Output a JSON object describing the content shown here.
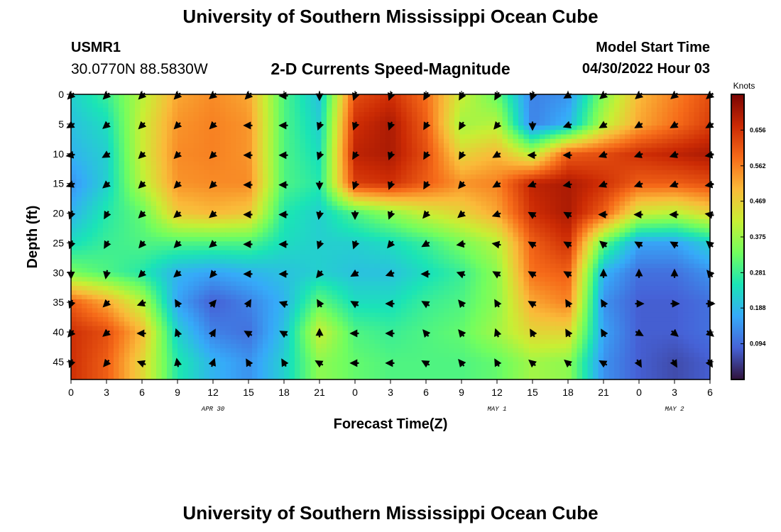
{
  "header": {
    "title": "University of Southern Mississippi Ocean Cube",
    "station": "USMR1",
    "coords": "30.0770N  88.5830W",
    "subtitle": "2-D Currents Speed-Magnitude",
    "model_label": "Model Start Time",
    "model_time": "04/30/2022 Hour 03"
  },
  "footer": {
    "title": "University of Southern Mississippi Ocean Cube"
  },
  "chart_data": {
    "type": "heatmap",
    "title": "2-D Currents Speed-Magnitude",
    "xlabel": "Forecast Time(Z)",
    "ylabel": "Depth (ft)",
    "x_ticks": [
      "0",
      "3",
      "6",
      "9",
      "12",
      "15",
      "18",
      "21",
      "0",
      "3",
      "6",
      "9",
      "12",
      "15",
      "18",
      "21",
      "0",
      "3",
      "6"
    ],
    "date_labels": [
      {
        "label": "APR 30",
        "at_tick": 4
      },
      {
        "label": "MAY 1",
        "at_tick": 12
      },
      {
        "label": "MAY 2",
        "at_tick": 17
      }
    ],
    "y_ticks": [
      0,
      5,
      10,
      15,
      20,
      25,
      30,
      35,
      40,
      45
    ],
    "ylim": [
      0,
      48
    ],
    "y_inverted": true,
    "colorbar": {
      "unit": "Knots",
      "ticks": [
        0.094,
        0.188,
        0.281,
        0.375,
        0.469,
        0.562,
        0.656
      ],
      "range": [
        0.0,
        0.75
      ],
      "colors": [
        "#30123b",
        "#4662d7",
        "#36aaf9",
        "#1ae4b6",
        "#72fe5e",
        "#c8ef34",
        "#faba39",
        "#f66b19",
        "#cb2a04",
        "#7a0403"
      ]
    },
    "grid_x_hours": [
      0,
      3,
      6,
      9,
      12,
      15,
      18,
      21,
      24,
      27,
      30,
      33,
      36,
      39,
      42,
      45,
      48,
      51,
      54
    ],
    "grid_depths": [
      0,
      5,
      10,
      15,
      20,
      25,
      30,
      35,
      40,
      45
    ],
    "speed": [
      [
        0.22,
        0.28,
        0.4,
        0.52,
        0.55,
        0.52,
        0.3,
        0.2,
        0.62,
        0.66,
        0.58,
        0.42,
        0.32,
        0.12,
        0.14,
        0.35,
        0.5,
        0.56,
        0.62
      ],
      [
        0.2,
        0.24,
        0.42,
        0.54,
        0.56,
        0.54,
        0.3,
        0.22,
        0.66,
        0.7,
        0.6,
        0.38,
        0.4,
        0.12,
        0.18,
        0.4,
        0.52,
        0.58,
        0.64
      ],
      [
        0.18,
        0.22,
        0.42,
        0.55,
        0.56,
        0.54,
        0.3,
        0.24,
        0.68,
        0.7,
        0.62,
        0.46,
        0.5,
        0.4,
        0.6,
        0.62,
        0.66,
        0.68,
        0.7
      ],
      [
        0.14,
        0.22,
        0.4,
        0.54,
        0.55,
        0.55,
        0.3,
        0.26,
        0.64,
        0.66,
        0.6,
        0.54,
        0.56,
        0.68,
        0.7,
        0.66,
        0.6,
        0.6,
        0.62
      ],
      [
        0.18,
        0.26,
        0.32,
        0.48,
        0.5,
        0.48,
        0.26,
        0.22,
        0.3,
        0.36,
        0.42,
        0.46,
        0.52,
        0.66,
        0.7,
        0.6,
        0.42,
        0.4,
        0.46
      ],
      [
        0.24,
        0.28,
        0.3,
        0.3,
        0.3,
        0.3,
        0.24,
        0.22,
        0.22,
        0.24,
        0.28,
        0.34,
        0.4,
        0.6,
        0.66,
        0.32,
        0.16,
        0.16,
        0.22
      ],
      [
        0.34,
        0.3,
        0.26,
        0.18,
        0.16,
        0.18,
        0.2,
        0.22,
        0.2,
        0.2,
        0.24,
        0.28,
        0.36,
        0.58,
        0.6,
        0.18,
        0.1,
        0.1,
        0.14
      ],
      [
        0.6,
        0.52,
        0.4,
        0.16,
        0.08,
        0.12,
        0.18,
        0.32,
        0.24,
        0.24,
        0.28,
        0.3,
        0.36,
        0.52,
        0.56,
        0.14,
        0.08,
        0.08,
        0.1
      ],
      [
        0.66,
        0.62,
        0.5,
        0.22,
        0.12,
        0.1,
        0.2,
        0.42,
        0.3,
        0.28,
        0.3,
        0.32,
        0.38,
        0.46,
        0.46,
        0.16,
        0.08,
        0.08,
        0.1
      ],
      [
        0.66,
        0.6,
        0.46,
        0.26,
        0.18,
        0.14,
        0.22,
        0.36,
        0.32,
        0.3,
        0.3,
        0.3,
        0.32,
        0.38,
        0.36,
        0.14,
        0.08,
        0.06,
        0.08
      ]
    ],
    "direction_deg": [
      [
        225,
        225,
        225,
        225,
        230,
        225,
        270,
        180,
        200,
        200,
        210,
        210,
        210,
        200,
        240,
        230,
        230,
        230,
        230
      ],
      [
        240,
        230,
        225,
        225,
        225,
        270,
        270,
        200,
        200,
        200,
        210,
        210,
        220,
        180,
        250,
        240,
        240,
        240,
        240
      ],
      [
        260,
        240,
        225,
        225,
        225,
        270,
        270,
        200,
        210,
        200,
        210,
        210,
        240,
        270,
        270,
        250,
        250,
        250,
        260
      ],
      [
        250,
        230,
        225,
        225,
        225,
        270,
        270,
        180,
        200,
        200,
        210,
        220,
        240,
        250,
        260,
        250,
        250,
        250,
        260
      ],
      [
        200,
        210,
        225,
        230,
        230,
        270,
        270,
        190,
        180,
        200,
        220,
        230,
        250,
        300,
        300,
        270,
        270,
        270,
        280
      ],
      [
        200,
        210,
        220,
        225,
        230,
        270,
        270,
        200,
        200,
        220,
        240,
        260,
        280,
        300,
        300,
        310,
        300,
        300,
        310
      ],
      [
        180,
        190,
        225,
        230,
        220,
        270,
        270,
        220,
        240,
        250,
        270,
        290,
        300,
        300,
        300,
        0,
        0,
        0,
        320
      ],
      [
        200,
        225,
        250,
        330,
        40,
        30,
        290,
        330,
        300,
        270,
        300,
        320,
        330,
        300,
        330,
        330,
        90,
        90,
        90
      ],
      [
        220,
        230,
        270,
        340,
        30,
        300,
        300,
        360,
        270,
        270,
        320,
        320,
        340,
        330,
        330,
        330,
        120,
        130,
        130
      ],
      [
        200,
        220,
        290,
        350,
        20,
        330,
        330,
        300,
        270,
        270,
        300,
        320,
        330,
        310,
        310,
        300,
        150,
        150,
        150
      ]
    ]
  }
}
